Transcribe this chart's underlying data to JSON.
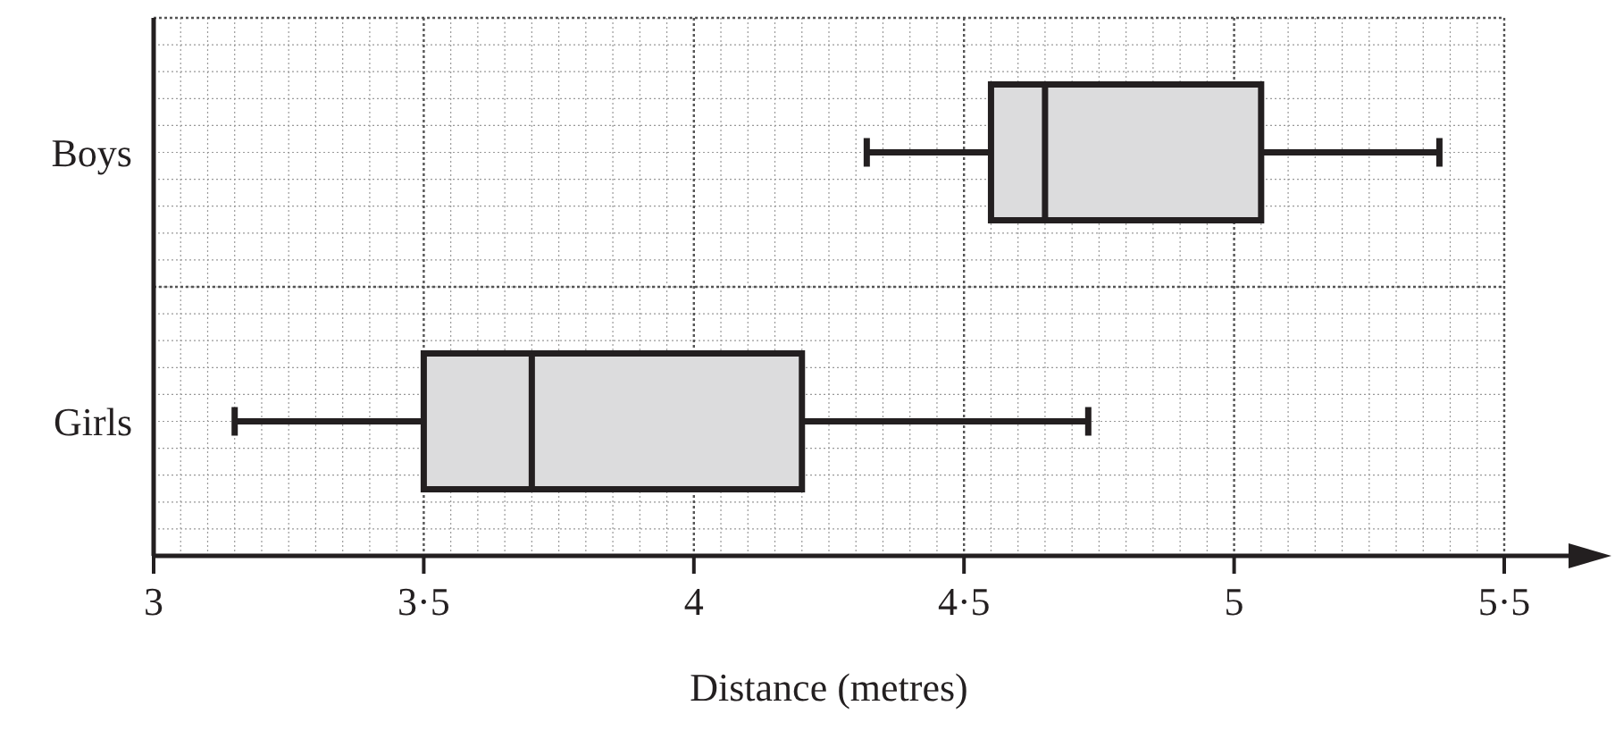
{
  "chart_data": {
    "type": "box",
    "orientation": "horizontal",
    "categories": [
      "Boys",
      "Girls"
    ],
    "boxes": [
      {
        "low": 4.32,
        "q1": 4.55,
        "median": 4.65,
        "q3": 5.05,
        "high": 5.38
      },
      {
        "low": 3.15,
        "q1": 3.5,
        "median": 3.7,
        "q3": 4.2,
        "high": 4.73
      }
    ],
    "color": "#dcdcdd",
    "xlabel": "Distance (metres)",
    "xlim": [
      3,
      5.5
    ],
    "xticks": [
      3,
      {
        "value": 3.5,
        "label": "3·5"
      },
      4,
      {
        "value": 4.5,
        "label": "4·5"
      },
      5,
      {
        "value": 5.5,
        "label": "5·5"
      }
    ],
    "grid": true
  }
}
